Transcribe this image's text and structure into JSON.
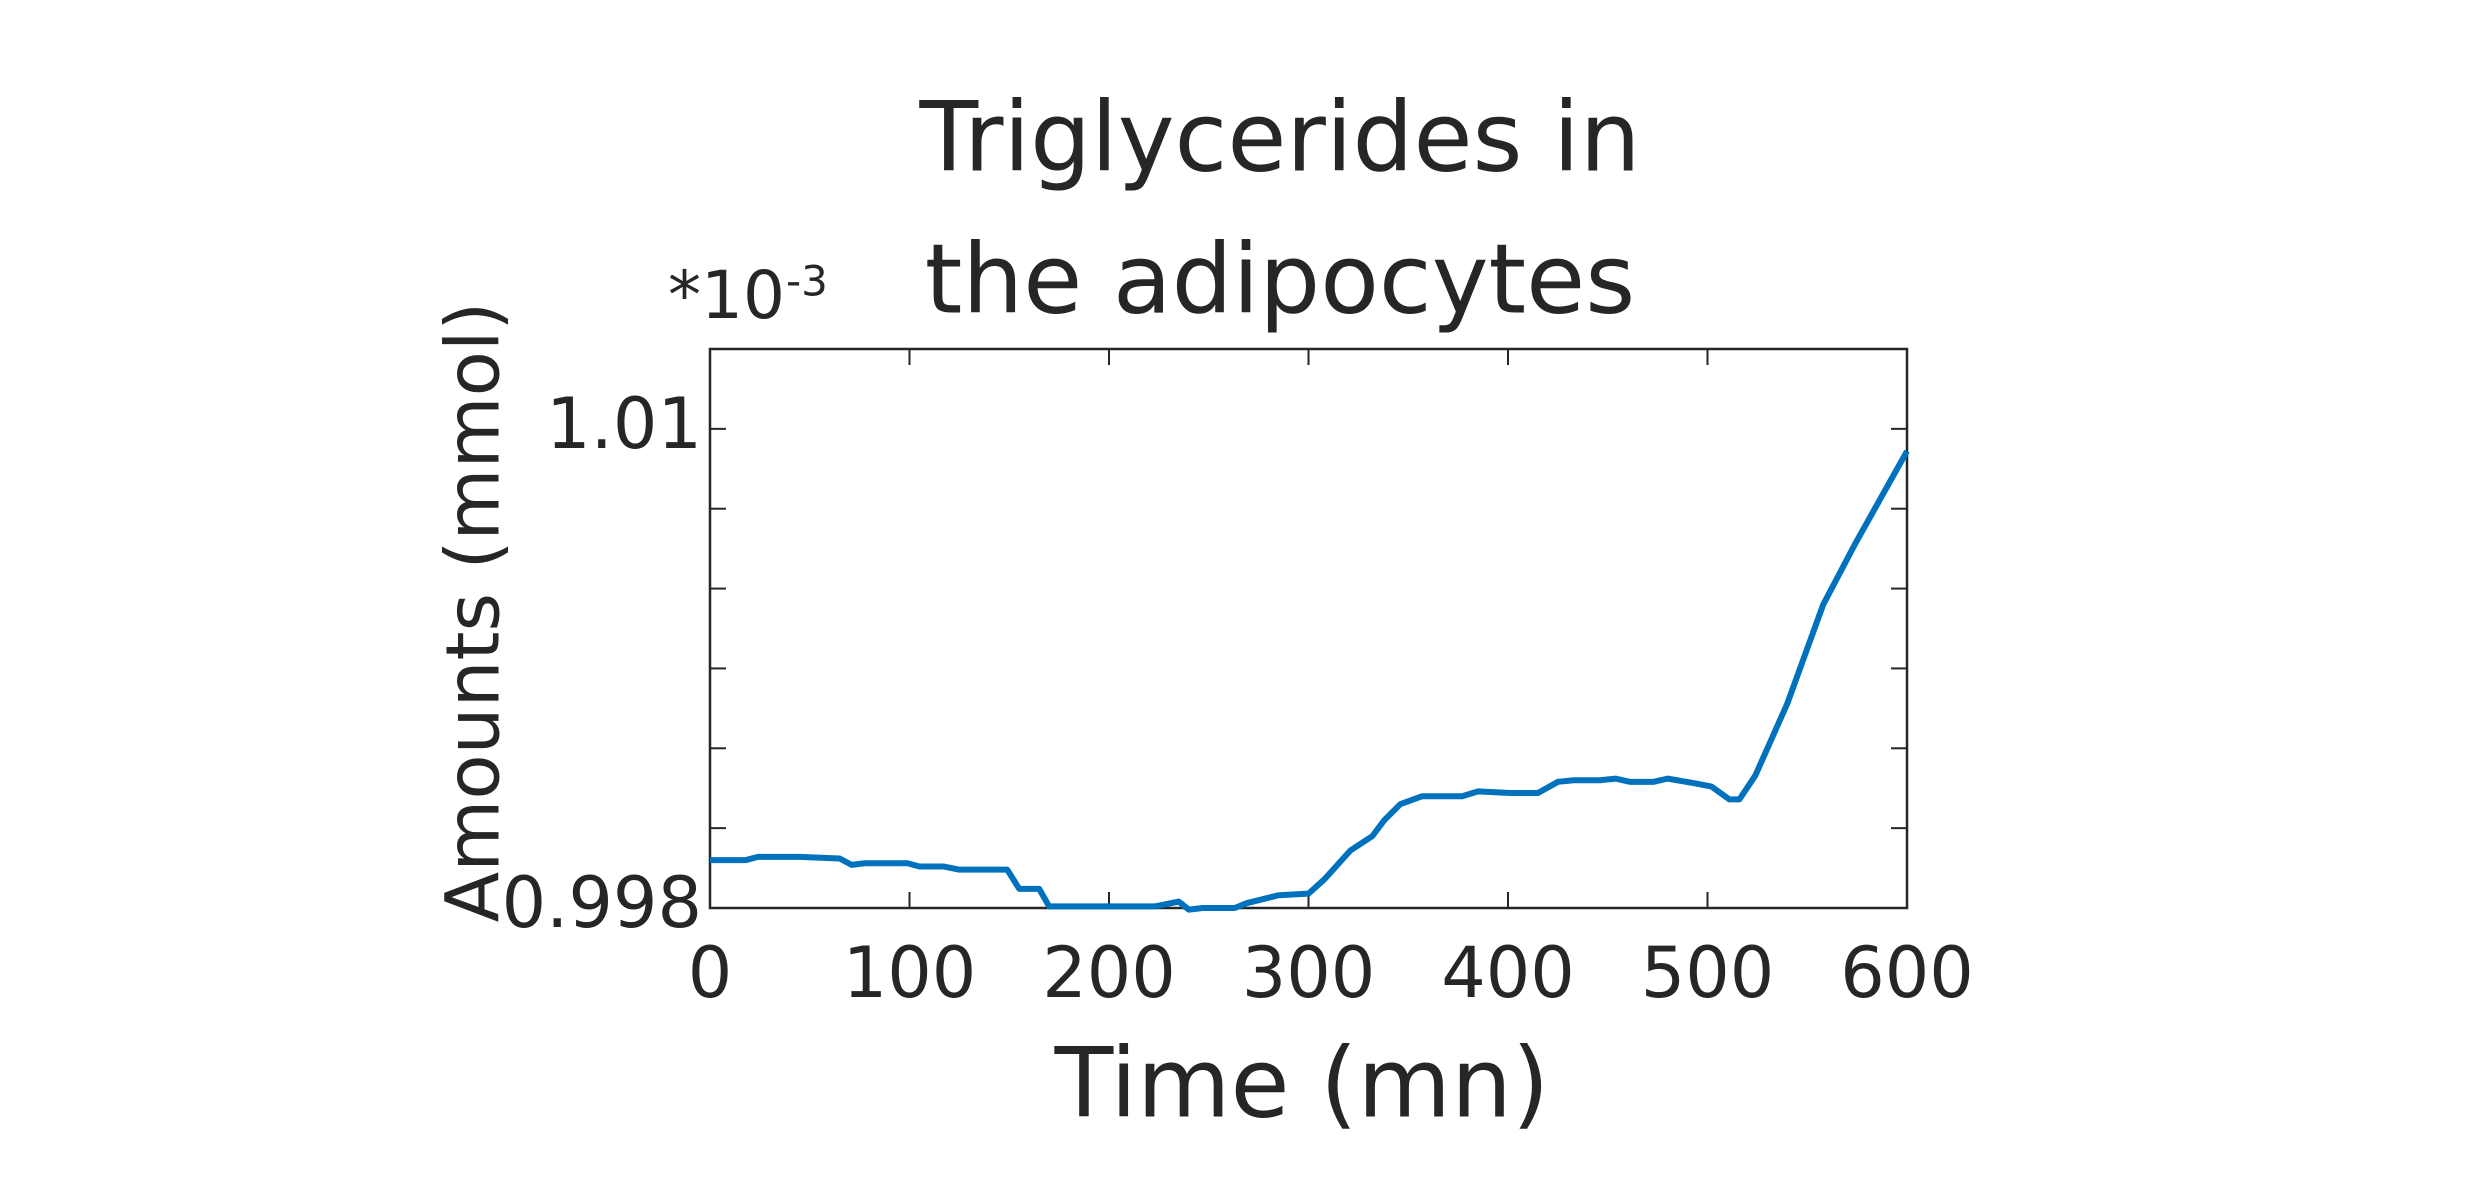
{
  "chart_data": {
    "type": "line",
    "title_lines": [
      "Triglycerides in",
      "the adipocytes"
    ],
    "x_label": "Time (mn)",
    "y_label": "Amounts (mmol)",
    "y_exponent_label": {
      "base": "*10",
      "exponent": "-3"
    },
    "xlim": [
      0,
      600
    ],
    "xticks": [
      0,
      100,
      200,
      300,
      400,
      500,
      600
    ],
    "ylim": [
      0.998,
      1.012
    ],
    "yticks": [
      0.998,
      1.01
    ],
    "y_minor_ticks": [
      1.0,
      1.002,
      1.004,
      1.006,
      1.008
    ],
    "grid": false,
    "series": [
      {
        "color": "#0072bd",
        "x": [
          0,
          18,
          24,
          45,
          65,
          71,
          77.5,
          99,
          105,
          117,
          125,
          149,
          155,
          165,
          170,
          223,
          235,
          240,
          247,
          263,
          269,
          285,
          300,
          308,
          321,
          332,
          338,
          346,
          357,
          377,
          385,
          401,
          415,
          425,
          433,
          446,
          454,
          461,
          473,
          480,
          494,
          502,
          511,
          516,
          524,
          540,
          558,
          574,
          600
        ],
        "values": [
          0.9992,
          0.9992,
          0.99928,
          0.99928,
          0.99924,
          0.99908,
          0.99912,
          0.99912,
          0.99904,
          0.99904,
          0.99896,
          0.99896,
          0.99848,
          0.99848,
          0.99804,
          0.99804,
          0.99816,
          0.99796,
          0.998,
          0.998,
          0.99812,
          0.99832,
          0.99836,
          0.99872,
          0.99944,
          0.9998,
          1.0002,
          1.0006,
          1.0008,
          1.0008,
          1.00092,
          1.00088,
          1.00088,
          1.00116,
          1.0012,
          1.0012,
          1.00124,
          1.00116,
          1.00116,
          1.00124,
          1.00112,
          1.00104,
          1.00072,
          1.00072,
          1.00132,
          1.00312,
          1.0056,
          1.00712,
          1.00944
        ]
      }
    ]
  }
}
